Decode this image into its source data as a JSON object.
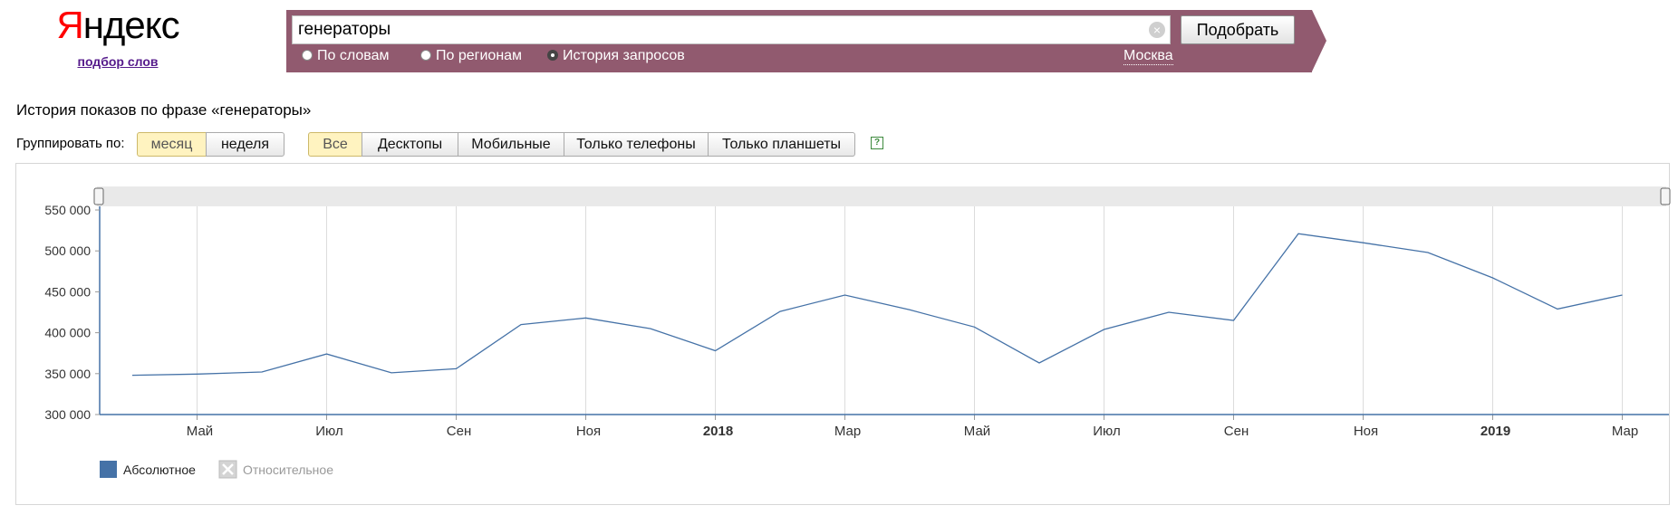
{
  "logo": {
    "brand_first": "Я",
    "brand_rest": "ндекс",
    "subtitle": "подбор слов"
  },
  "search": {
    "query": "генераторы",
    "submit_label": "Подобрать",
    "modes": [
      "По словам",
      "По регионам",
      "История запросов"
    ],
    "selected_mode": "История запросов",
    "region": "Москва",
    "band_color": "#915a6f"
  },
  "page": {
    "title": "История показов по фразе «генераторы»"
  },
  "grouping": {
    "label": "Группировать по:",
    "options": [
      "месяц",
      "неделя"
    ],
    "selected": "месяц"
  },
  "devices": {
    "options": [
      "Все",
      "Десктопы",
      "Мобильные",
      "Только телефоны",
      "Только планшеты"
    ],
    "selected": "Все"
  },
  "help_icon": "?",
  "chart_data": {
    "type": "line",
    "x": [
      "2017-04",
      "2017-05",
      "2017-06",
      "2017-07",
      "2017-08",
      "2017-09",
      "2017-10",
      "2017-11",
      "2017-12",
      "2018-01",
      "2018-02",
      "2018-03",
      "2018-04",
      "2018-05",
      "2018-06",
      "2018-07",
      "2018-08",
      "2018-09",
      "2018-10",
      "2018-11",
      "2018-12",
      "2019-01",
      "2019-02",
      "2019-03"
    ],
    "series": [
      {
        "values": [
          348000,
          349500,
          352000,
          374000,
          351000,
          356000,
          410000,
          418000,
          405000,
          378000,
          426000,
          446000,
          428000,
          407000,
          363000,
          404000,
          425000,
          415000,
          521000,
          510000,
          498000,
          467000,
          429000,
          446000
        ],
        "color": "#4572a7"
      }
    ],
    "ylim": [
      300000,
      550000
    ],
    "y_ticks": [
      "300 000",
      "350 000",
      "400 000",
      "450 000",
      "500 000",
      "550 000"
    ],
    "x_tick_labels": [
      "Май",
      "Июл",
      "Сен",
      "Ноя",
      "2018",
      "Мар",
      "Май",
      "Июл",
      "Сен",
      "Ноя",
      "2019",
      "Мар"
    ],
    "bold_tick_labels": [
      "2018",
      "2019"
    ],
    "grid": true,
    "legend": [
      "Абсолютное",
      "Относительное"
    ],
    "legend_active": "Абсолютное",
    "legend_placement": "bottom-left"
  }
}
